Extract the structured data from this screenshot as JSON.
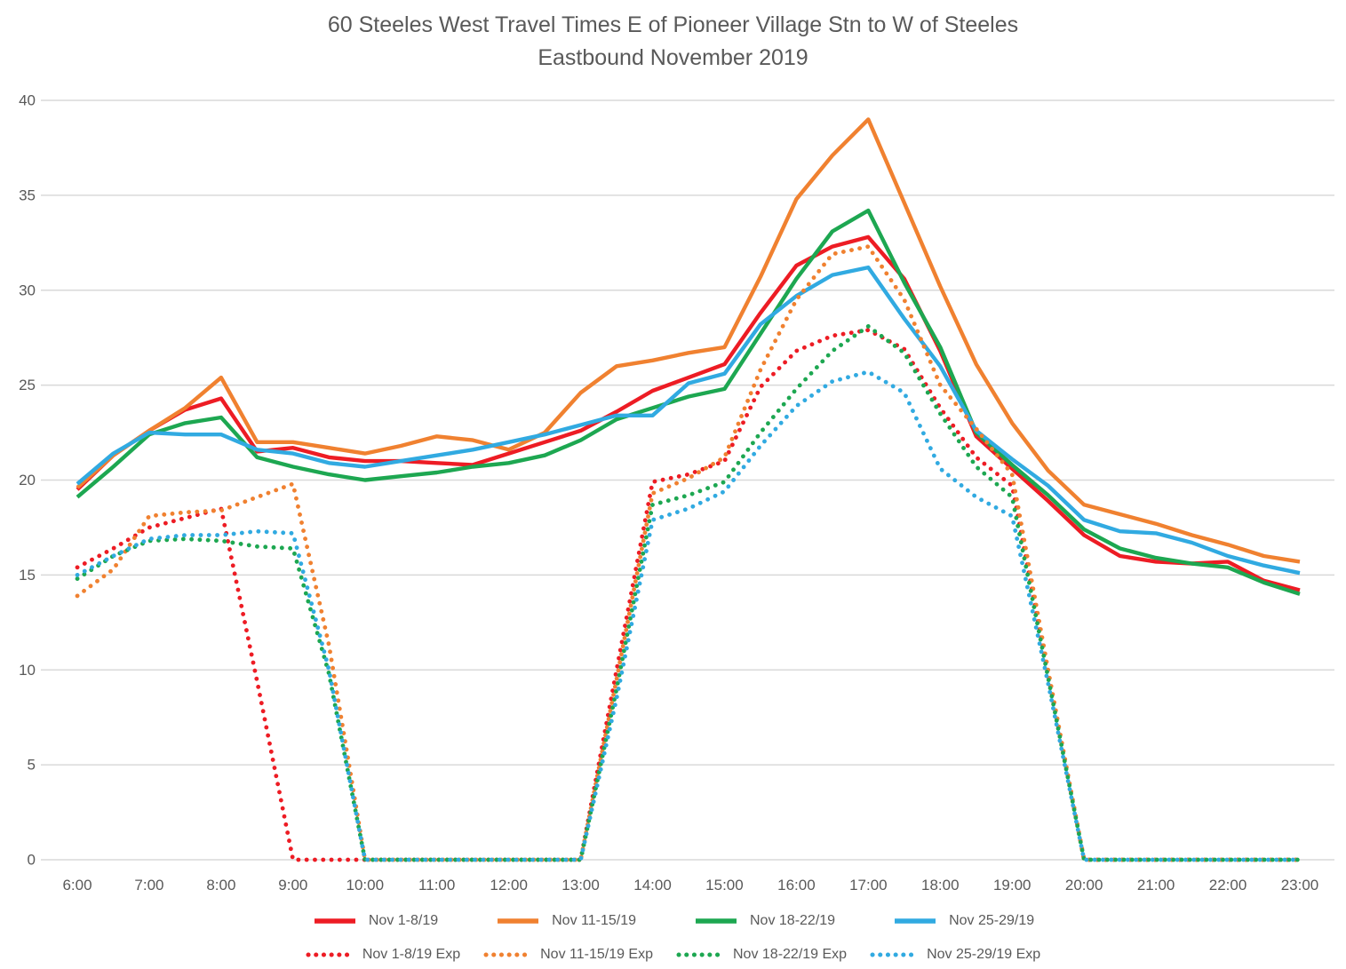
{
  "title": {
    "line1": "60 Steeles West Travel Times E of Pioneer Village Stn to W of Steeles",
    "line2": "Eastbound  November 2019"
  },
  "colors": {
    "red": "#ED1C24",
    "orange": "#F08130",
    "green": "#1DA751",
    "blue": "#31AAE1",
    "text": "#595959",
    "gridline": "#D9D9D9",
    "background": "#FFFFFF"
  },
  "chart_data": {
    "type": "line",
    "title": "60 Steeles West Travel Times E of Pioneer Village Stn to W of Steeles Eastbound November 2019",
    "xlabel": "",
    "ylabel": "",
    "ylim": [
      0,
      40
    ],
    "y_ticks": [
      0,
      5,
      10,
      15,
      20,
      25,
      30,
      35,
      40
    ],
    "grid": "horizontal-only",
    "legend_position": "bottom",
    "x_tick_labels": [
      "6:00",
      "7:00",
      "8:00",
      "9:00",
      "10:00",
      "11:00",
      "12:00",
      "13:00",
      "14:00",
      "15:00",
      "16:00",
      "17:00",
      "18:00",
      "19:00",
      "20:00",
      "21:00",
      "22:00",
      "23:00"
    ],
    "x_hours": [
      6,
      6.5,
      7,
      7.5,
      8,
      8.5,
      9,
      9.5,
      10,
      10.5,
      11,
      11.5,
      12,
      12.5,
      13,
      13.5,
      14,
      14.5,
      15,
      15.5,
      16,
      16.5,
      17,
      17.5,
      18,
      18.5,
      19,
      19.5,
      20,
      20.5,
      21,
      21.5,
      22,
      22.5,
      23
    ],
    "series": [
      {
        "name": "Nov 1-8/19",
        "color_key": "red",
        "style": "solid",
        "values": [
          19.5,
          21.3,
          22.6,
          23.7,
          24.3,
          21.5,
          21.7,
          21.2,
          21.0,
          21.0,
          20.9,
          20.8,
          21.4,
          22.0,
          22.6,
          23.6,
          24.7,
          25.4,
          26.1,
          28.8,
          31.3,
          32.3,
          32.8,
          30.6,
          26.8,
          22.3,
          20.6,
          18.9,
          17.1,
          16.0,
          15.7,
          15.6,
          15.7,
          14.7,
          14.2
        ]
      },
      {
        "name": "Nov 11-15/19",
        "color_key": "orange",
        "style": "solid",
        "values": [
          19.6,
          21.3,
          22.6,
          23.8,
          25.4,
          22.0,
          22.0,
          21.7,
          21.4,
          21.8,
          22.3,
          22.1,
          21.6,
          22.5,
          24.6,
          26.0,
          26.3,
          26.7,
          27.0,
          30.7,
          34.8,
          37.1,
          39.0,
          34.6,
          30.2,
          26.1,
          23.0,
          20.5,
          18.7,
          18.2,
          17.7,
          17.1,
          16.6,
          16.0,
          15.7
        ]
      },
      {
        "name": "Nov 18-22/19",
        "color_key": "green",
        "style": "solid",
        "values": [
          19.1,
          20.7,
          22.4,
          23.0,
          23.3,
          21.2,
          20.7,
          20.3,
          20.0,
          20.2,
          20.4,
          20.7,
          20.9,
          21.3,
          22.1,
          23.2,
          23.8,
          24.4,
          24.8,
          27.7,
          30.6,
          33.1,
          34.2,
          30.4,
          27.0,
          22.5,
          20.8,
          19.2,
          17.4,
          16.4,
          15.9,
          15.6,
          15.4,
          14.6,
          14.0
        ]
      },
      {
        "name": "Nov 25-29/19",
        "color_key": "blue",
        "style": "solid",
        "values": [
          19.8,
          21.4,
          22.5,
          22.4,
          22.4,
          21.6,
          21.4,
          20.9,
          20.7,
          21.0,
          21.3,
          21.6,
          22.0,
          22.4,
          22.9,
          23.4,
          23.4,
          25.1,
          25.6,
          28.2,
          29.7,
          30.8,
          31.2,
          28.5,
          26.0,
          22.6,
          21.1,
          19.7,
          17.9,
          17.3,
          17.2,
          16.7,
          16.0,
          15.5,
          15.1
        ]
      },
      {
        "name": "Nov 1-8/19 Exp",
        "color_key": "red",
        "style": "dotted",
        "values": [
          15.4,
          16.4,
          17.5,
          18.0,
          18.5,
          9.4,
          0,
          0,
          0,
          0,
          0,
          0,
          0,
          0,
          0,
          10.0,
          19.9,
          20.3,
          21.0,
          24.9,
          26.8,
          27.6,
          27.9,
          26.9,
          23.8,
          21.2,
          19.7,
          9.8,
          0,
          0,
          0,
          0,
          0,
          0,
          0
        ]
      },
      {
        "name": "Nov 11-15/19 Exp",
        "color_key": "orange",
        "style": "dotted",
        "values": [
          13.9,
          15.3,
          18.1,
          18.3,
          18.4,
          19.1,
          19.8,
          11.3,
          0,
          0,
          0,
          0,
          0,
          0,
          0,
          9.5,
          19.3,
          20.1,
          21.2,
          25.8,
          29.5,
          31.9,
          32.3,
          29.5,
          25.0,
          22.7,
          20.3,
          10.0,
          0,
          0,
          0,
          0,
          0,
          0,
          0
        ]
      },
      {
        "name": "Nov 18-22/19 Exp",
        "color_key": "green",
        "style": "dotted",
        "values": [
          14.8,
          16.0,
          16.8,
          16.9,
          16.8,
          16.5,
          16.4,
          9.8,
          0,
          0,
          0,
          0,
          0,
          0,
          0,
          9.0,
          18.7,
          19.2,
          19.9,
          22.5,
          24.8,
          26.8,
          28.1,
          26.7,
          23.5,
          20.7,
          19.1,
          9.6,
          0,
          0,
          0,
          0,
          0,
          0,
          0
        ]
      },
      {
        "name": "Nov 25-29/19 Exp",
        "color_key": "blue",
        "style": "dotted",
        "values": [
          15.0,
          16.0,
          16.9,
          17.1,
          17.1,
          17.3,
          17.2,
          10.0,
          0,
          0,
          0,
          0,
          0,
          0,
          0,
          8.5,
          17.9,
          18.5,
          19.4,
          21.8,
          23.9,
          25.2,
          25.7,
          24.6,
          20.6,
          19.1,
          18.1,
          9.3,
          0,
          0,
          0,
          0,
          0,
          0,
          0
        ]
      }
    ]
  }
}
